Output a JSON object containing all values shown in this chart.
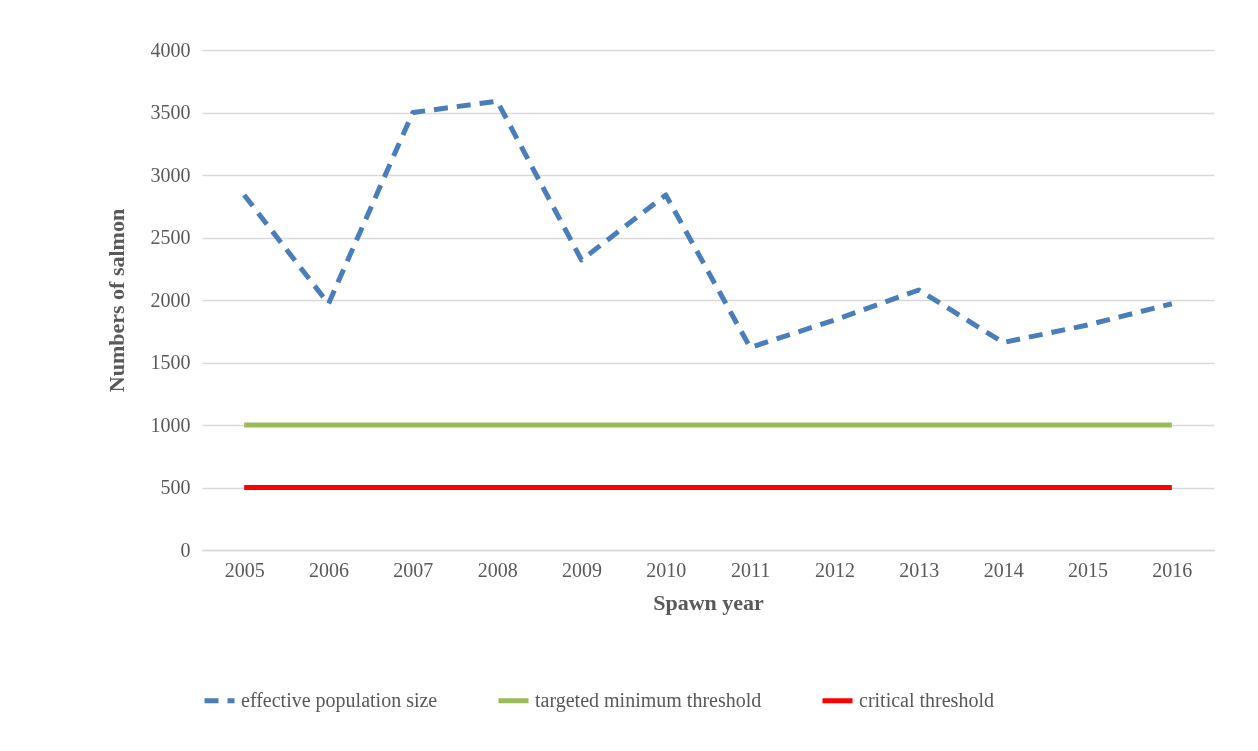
{
  "chart_data": {
    "type": "line",
    "xlabel": "Spawn year",
    "ylabel": "Numbers of salmon",
    "categories": [
      "2005",
      "2006",
      "2007",
      "2008",
      "2009",
      "2010",
      "2011",
      "2012",
      "2013",
      "2014",
      "2015",
      "2016"
    ],
    "series": [
      {
        "name": "effective population size",
        "color": "#4a7ebb",
        "line_style": "dashed",
        "values": [
          2840,
          1970,
          3500,
          3590,
          2320,
          2840,
          1620,
          1840,
          2080,
          1660,
          1800,
          1970
        ]
      },
      {
        "name": "targeted minimum threshold",
        "color": "#9bbb59",
        "line_style": "solid",
        "values": [
          1000,
          1000,
          1000,
          1000,
          1000,
          1000,
          1000,
          1000,
          1000,
          1000,
          1000,
          1000
        ]
      },
      {
        "name": "critical threshold",
        "color": "#ff0000",
        "line_style": "solid",
        "values": [
          500,
          500,
          500,
          500,
          500,
          500,
          500,
          500,
          500,
          500,
          500,
          500
        ]
      }
    ],
    "ylim": [
      0,
      4000
    ],
    "yticks": [
      0,
      500,
      1000,
      1500,
      2000,
      2500,
      3000,
      3500,
      4000
    ],
    "grid": "y",
    "legend": "bottom",
    "marker": "none"
  }
}
